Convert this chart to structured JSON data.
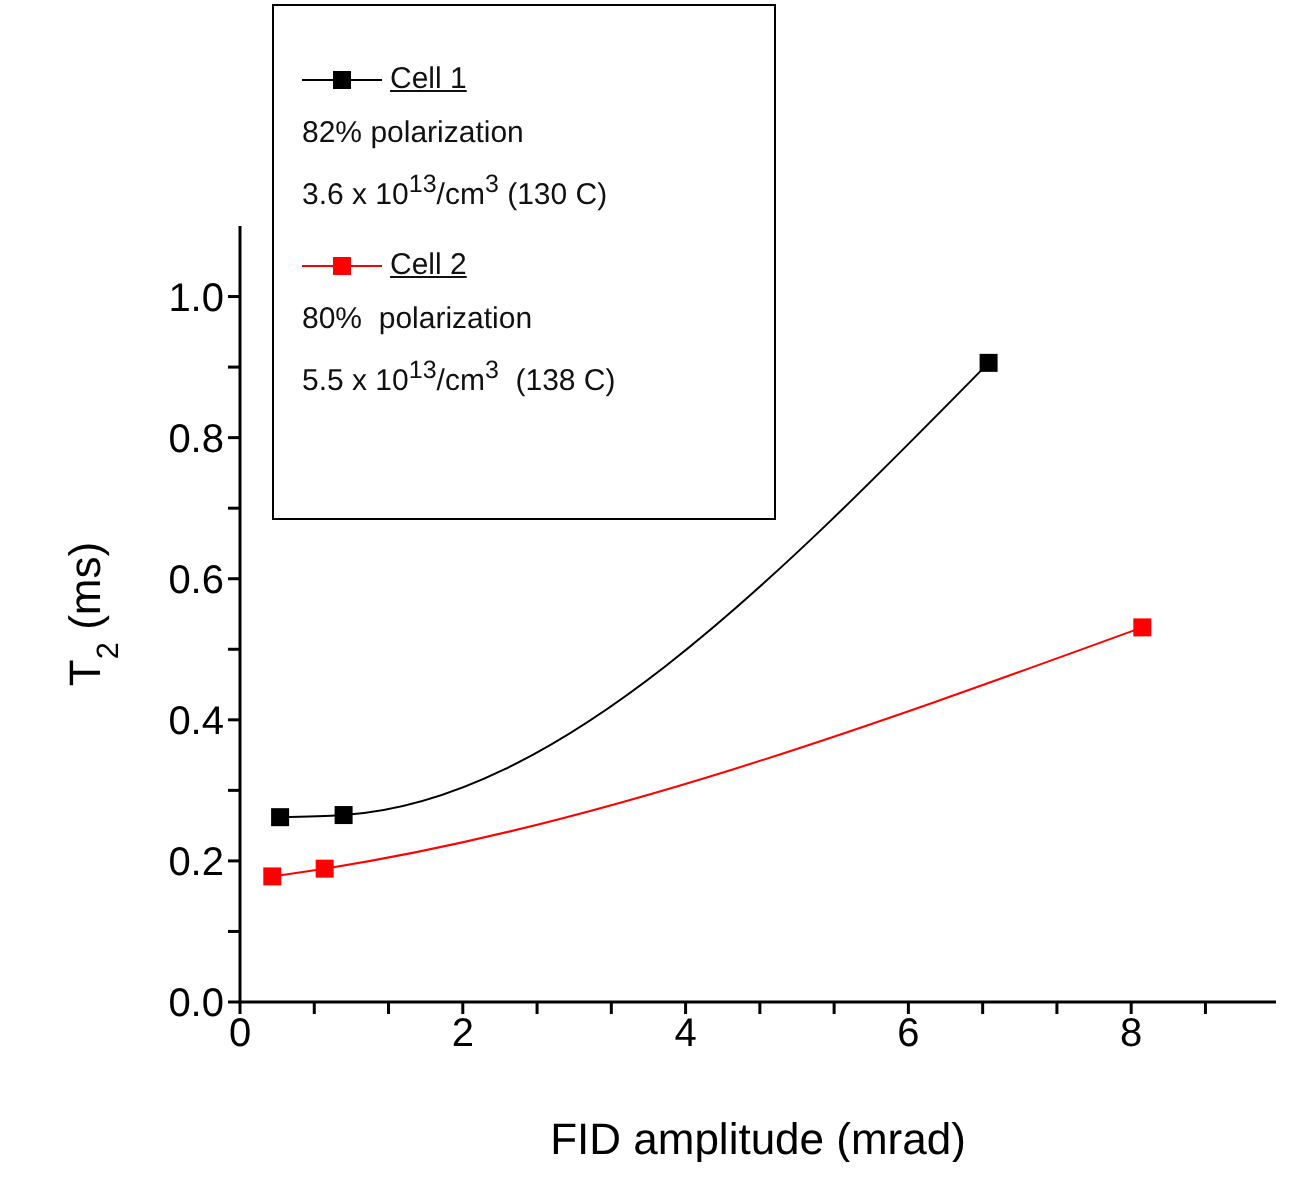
{
  "chart_data": {
    "type": "line",
    "xlabel": "FID amplitude (mrad)",
    "ylabel": "T$_{2}$ (ms)",
    "xlim": [
      0,
      9.3
    ],
    "xticks": [
      0,
      {
        "value": 0.6667,
        "label": null
      },
      {
        "value": 1.3333,
        "label": null
      },
      2,
      {
        "value": 2.6667,
        "label": null
      },
      {
        "value": 3.3333,
        "label": null
      },
      4,
      {
        "value": 4.6667,
        "label": null
      },
      {
        "value": 5.3333,
        "label": null
      },
      6,
      {
        "value": 6.6667,
        "label": null
      },
      {
        "value": 7.3333,
        "label": null
      },
      8,
      {
        "value": 8.6667,
        "label": null
      }
    ],
    "ylim": [
      0,
      1.1
    ],
    "yticks": [
      "0.0",
      {
        "value": 0.1,
        "label": null
      },
      {
        "value": 0.2,
        "label": "0.2"
      },
      {
        "value": 0.3,
        "label": null
      },
      {
        "value": 0.4,
        "label": "0.4"
      },
      {
        "value": 0.5,
        "label": null
      },
      {
        "value": 0.6,
        "label": "0.6"
      },
      {
        "value": 0.7,
        "label": null
      },
      {
        "value": 0.8,
        "label": "0.8"
      },
      {
        "value": 0.9,
        "label": null
      },
      {
        "value": 1.0,
        "label": "1.0"
      }
    ],
    "marker": "square",
    "legend": "top left",
    "grid": false,
    "series": [
      {
        "name": "Cell 1",
        "color": "#000000",
        "x": [
          0.36,
          0.93,
          6.72
        ],
        "values": [
          0.262,
          0.265,
          0.906
        ]
      },
      {
        "name": "Cell 2",
        "color": "#ff0000",
        "x": [
          0.29,
          0.76,
          8.1
        ],
        "values": [
          0.178,
          0.189,
          0.531
        ]
      }
    ],
    "annotations": [
      "82% polarization",
      "3.6 x 10$^{13}$/cm$^{3}$ (130 C)",
      "80%  polarization",
      "5.5 x 10$^{13}$/cm$^{3}$  (138 C)"
    ]
  }
}
